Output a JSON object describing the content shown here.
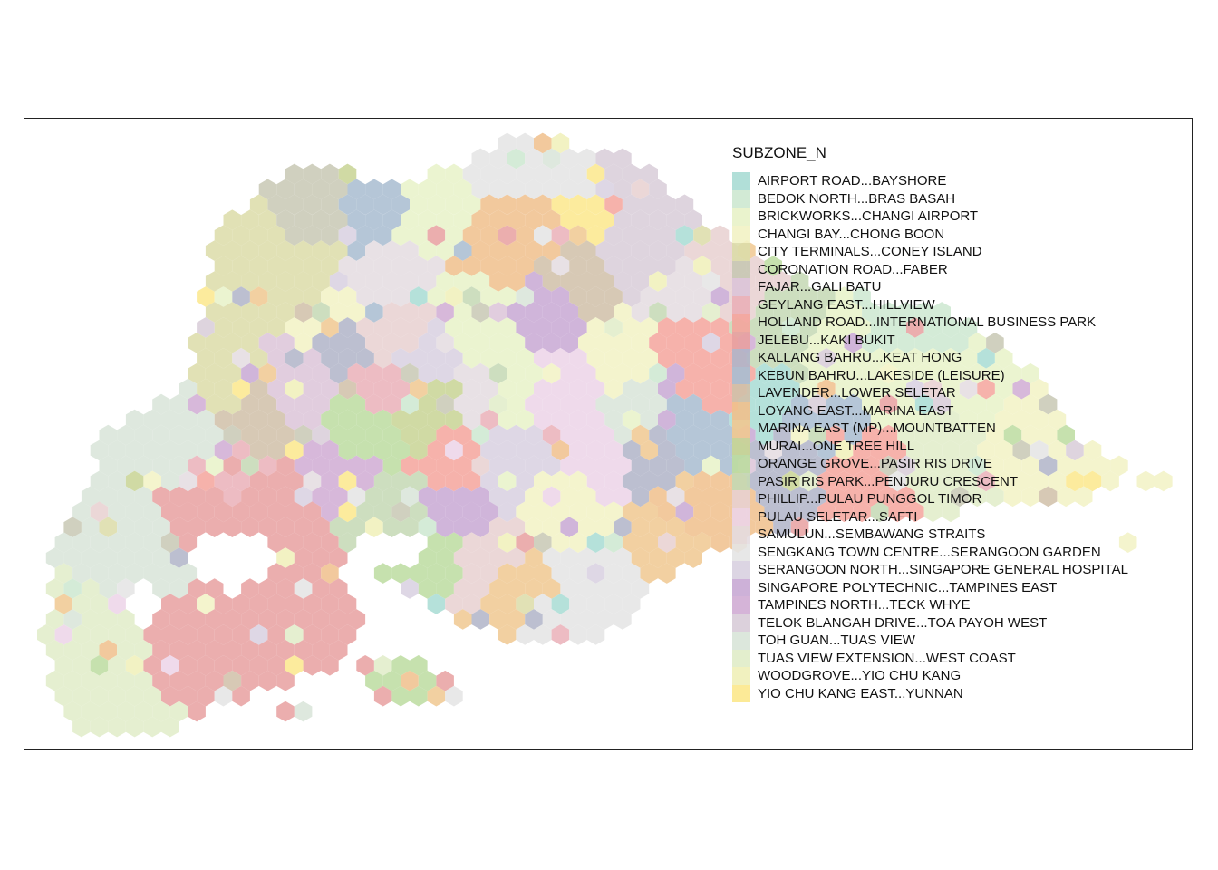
{
  "map": {
    "legend_title": "SUBZONE_N",
    "legend_items": [
      {
        "label": "AIRPORT ROAD...BAYSHORE",
        "color": "#a8dcd4"
      },
      {
        "label": "BEDOK NORTH...BRAS BASAH",
        "color": "#cde8d0"
      },
      {
        "label": "BRICKWORKS...CHANGI AIRPORT",
        "color": "#e8f2c8"
      },
      {
        "label": "CHANGI BAY...CHONG BOON",
        "color": "#f2f2c4"
      },
      {
        "label": "CITY TERMINALS...CONEY ISLAND",
        "color": "#dcdca8"
      },
      {
        "label": "CORONATION ROAD...FABER",
        "color": "#c8c8b4"
      },
      {
        "label": "FAJAR...GALI BATU",
        "color": "#dcc4d8"
      },
      {
        "label": "GEYLANG EAST...HILLVIEW",
        "color": "#eab0b8"
      },
      {
        "label": "HOLLAND ROAD...INTERNATIONAL BUSINESS PARK",
        "color": "#f4a49c"
      },
      {
        "label": "JELEBU...KAKI BUKIT",
        "color": "#e8a0a0"
      },
      {
        "label": "KALLANG BAHRU...KEAT HONG",
        "color": "#b0b4c8"
      },
      {
        "label": "KEBUN BAHRU...LAKESIDE (LEISURE)",
        "color": "#a8bcd0"
      },
      {
        "label": "LAVENDER...LOWER SELETAR",
        "color": "#d0c0a8"
      },
      {
        "label": "LOYANG EAST...MARINA EAST",
        "color": "#f0c08c"
      },
      {
        "label": "MARINA EAST (MP)...MOUNTBATTEN",
        "color": "#f0c890"
      },
      {
        "label": "MURAI...ONE TREE HILL",
        "color": "#c8d494"
      },
      {
        "label": "ORANGE GROVE...PASIR RIS DRIVE",
        "color": "#bcdca0"
      },
      {
        "label": "PASIR RIS PARK...PENJURU CRESCENT",
        "color": "#c4d8b4"
      },
      {
        "label": "PHILLIP...PULAU PUNGGOL TIMOR",
        "color": "#e8d0d0"
      },
      {
        "label": "PULAU SELETAR...SAFTI",
        "color": "#ecd4e8"
      },
      {
        "label": "SAMULUN...SEMBAWANG STRAITS",
        "color": "#e4dce0"
      },
      {
        "label": "SENGKANG TOWN CENTRE...SERANGOON GARDEN",
        "color": "#e4e4e4"
      },
      {
        "label": "SERANGOON NORTH...SINGAPORE GENERAL HOSPITAL",
        "color": "#d8d0e0"
      },
      {
        "label": "SINGAPORE POLYTECHNIC...TAMPINES EAST",
        "color": "#c8a8d4"
      },
      {
        "label": "TAMPINES NORTH...TECK WHYE",
        "color": "#d0acd4"
      },
      {
        "label": "TELOK BLANGAH DRIVE...TOA PAYOH WEST",
        "color": "#d8ccd8"
      },
      {
        "label": "TOH GUAN...TUAS VIEW",
        "color": "#d8e4d8"
      },
      {
        "label": "TUAS VIEW EXTENSION...WEST COAST",
        "color": "#e0ecc8"
      },
      {
        "label": "WOODGROVE...YIO CHU KANG",
        "color": "#f0f0b8"
      },
      {
        "label": "YIO CHU KANG EAST...YUNNAN",
        "color": "#fce88c"
      }
    ]
  }
}
